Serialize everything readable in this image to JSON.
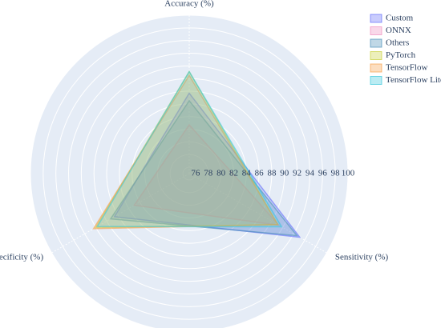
{
  "chart_data": {
    "type": "radar",
    "axes": [
      "Accuracy (%)",
      "Sensitivity (%)",
      "Specificity (%)"
    ],
    "rlim": [
      75,
      100
    ],
    "rticks": [
      76,
      78,
      80,
      82,
      84,
      86,
      88,
      90,
      92,
      94,
      96,
      98,
      100
    ],
    "series": [
      {
        "name": "Custom",
        "color": "#636efa",
        "values": [
          87.7,
          95.1,
          88.6
        ]
      },
      {
        "name": "ONNX",
        "color": "#ef8fbf",
        "values": [
          82.7,
          91.3,
          85
        ]
      },
      {
        "name": "Others",
        "color": "#4a8fb8",
        "values": [
          86.5,
          94.6,
          89.3
        ]
      },
      {
        "name": "PyTorch",
        "color": "#c8d23c",
        "values": [
          91.1,
          91.1,
          92
        ]
      },
      {
        "name": "TensorFlow",
        "color": "#f5a04a",
        "values": [
          90.5,
          91.1,
          92.4
        ]
      },
      {
        "name": "TensorFlow Lite",
        "color": "#3cc8dc",
        "values": [
          91.1,
          91.8,
          91.7
        ]
      }
    ]
  }
}
